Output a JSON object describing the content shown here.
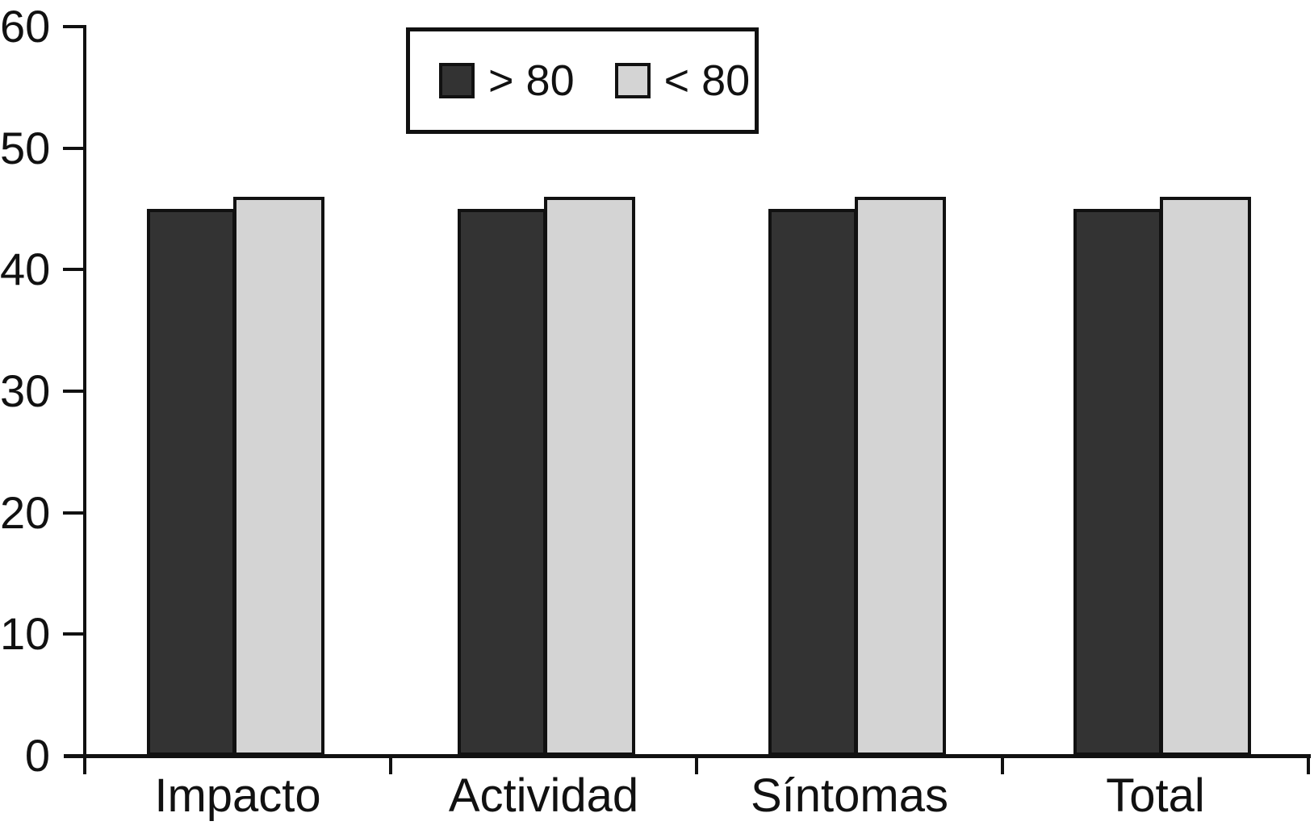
{
  "figure": {
    "background_color": "#ffffff",
    "ink_color": "#111111"
  },
  "chart_data": {
    "type": "bar",
    "title": "",
    "xlabel": "",
    "ylabel": "",
    "categories": [
      "Impacto",
      "Actividad",
      "Síntomas",
      "Total"
    ],
    "series": [
      {
        "name": "> 80",
        "color": "#333333",
        "values": [
          45,
          45,
          45,
          45
        ]
      },
      {
        "name": "< 80",
        "color": "#d4d4d4",
        "values": [
          46,
          46,
          46,
          46
        ]
      }
    ],
    "ylim": [
      0,
      60
    ],
    "yticks": [
      0,
      10,
      20,
      30,
      40,
      50,
      60
    ],
    "grid": false,
    "legend_position": "top-center",
    "legend_labels": [
      "> 80",
      "< 80"
    ]
  }
}
